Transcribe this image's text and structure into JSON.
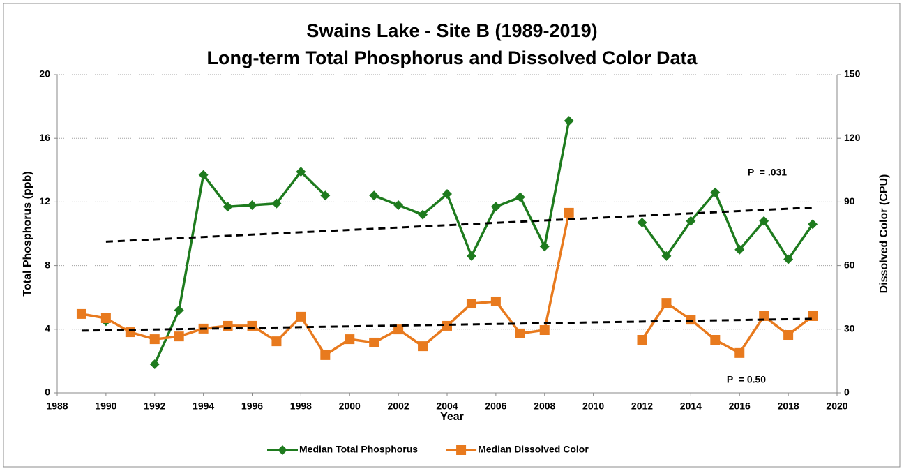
{
  "chart_data": {
    "type": "line",
    "title": "Swains Lake - Site B (1989-2019)",
    "subtitle": "Long-term Total Phosphorus and Dissolved Color Data",
    "x_label": "Year",
    "y_label": "Total Phosphorus (ppb)",
    "y2_label": "Dissolved Color (CPU)",
    "x": [
      1989,
      1990,
      1991,
      1992,
      1993,
      1994,
      1995,
      1996,
      1997,
      1998,
      1999,
      2000,
      2001,
      2002,
      2003,
      2004,
      2005,
      2006,
      2007,
      2008,
      2009,
      2010,
      2011,
      2012,
      2013,
      2014,
      2015,
      2016,
      2017,
      2018,
      2019
    ],
    "series": [
      {
        "name": "Median Total Phosphorus",
        "color": "#1e7b1e",
        "marker": "diamond",
        "axis": "y",
        "values": [
          null,
          4.5,
          null,
          1.8,
          5.2,
          13.7,
          11.7,
          11.8,
          11.9,
          13.9,
          12.4,
          null,
          12.4,
          11.8,
          11.2,
          12.5,
          8.6,
          11.7,
          12.3,
          9.2,
          17.1,
          null,
          null,
          10.7,
          8.6,
          10.8,
          12.6,
          9.0,
          10.8,
          8.4,
          10.6
        ]
      },
      {
        "name": "Median Dissolved Color",
        "color": "#e87a1e",
        "marker": "square",
        "axis": "y2",
        "values": [
          37.2,
          35.2,
          28.6,
          25.3,
          26.6,
          30.3,
          31.6,
          31.6,
          24.3,
          35.9,
          17.8,
          25.3,
          23.7,
          29.9,
          22.0,
          31.6,
          42.1,
          43.1,
          28.0,
          29.6,
          84.9,
          null,
          null,
          25.0,
          42.4,
          34.5,
          25.0,
          18.8,
          36.2,
          27.3,
          36.2
        ]
      }
    ],
    "trend_lines": [
      {
        "axis": "y",
        "color": "#000000",
        "x": [
          1990,
          2019
        ],
        "values": [
          9.5,
          11.65
        ]
      },
      {
        "axis": "y2",
        "color": "#000000",
        "x": [
          1989,
          2019
        ],
        "values": [
          29.3,
          34.9
        ]
      }
    ],
    "annotations": [
      {
        "text": "P  = .031",
        "color": "#1e7b1e"
      },
      {
        "text": "P  = 0.50",
        "color": "#e87a1e"
      }
    ],
    "xlim": [
      1988,
      2020
    ],
    "xticks": [
      1988,
      1990,
      1992,
      1994,
      1996,
      1998,
      2000,
      2002,
      2004,
      2006,
      2008,
      2010,
      2012,
      2014,
      2016,
      2018,
      2020
    ],
    "ylim": [
      0,
      20
    ],
    "yticks": [
      0,
      4,
      8,
      12,
      16,
      20
    ],
    "y2lim": [
      0,
      150
    ],
    "y2ticks": [
      0,
      30,
      60,
      90,
      120,
      150
    ],
    "grid": true,
    "legend": "bottom"
  }
}
